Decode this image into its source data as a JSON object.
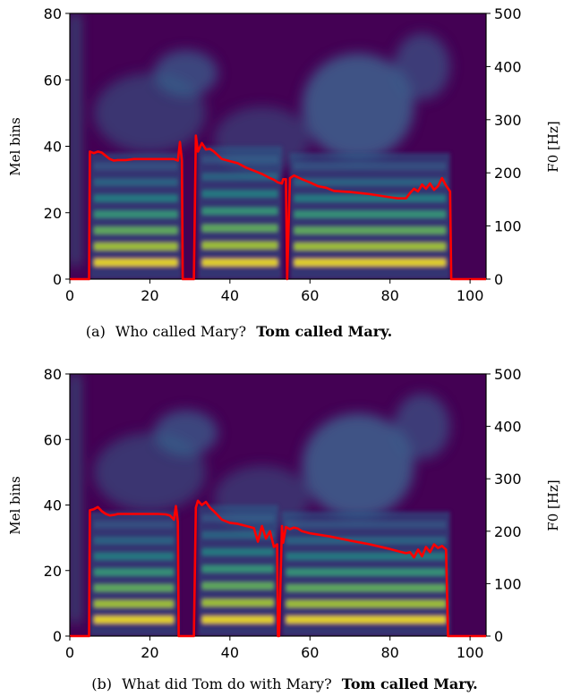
{
  "chart_data": [
    {
      "type": "heatmap",
      "caption": {
        "prefix": "(a)",
        "question": "Who called Mary?",
        "answer": "Tom called Mary."
      },
      "ylabel": "Mel bins",
      "y2label": "F0 [Hz]",
      "xlim": [
        0,
        104
      ],
      "ylim": [
        0,
        80
      ],
      "y2lim": [
        0,
        500
      ],
      "xticks": [
        "0",
        "20",
        "40",
        "60",
        "80",
        "100"
      ],
      "yticks": [
        "0",
        "20",
        "40",
        "60",
        "80"
      ],
      "y2ticks": [
        "0",
        "100",
        "200",
        "300",
        "400",
        "500"
      ],
      "colors": {
        "background": "#440154",
        "f0_line": "#ff0000"
      },
      "voiced_regions": [
        {
          "x0": 5,
          "x1": 28,
          "top": 34
        },
        {
          "x0": 32,
          "x1": 53,
          "top": 36
        },
        {
          "x0": 55,
          "x1": 95,
          "top": 34
        }
      ],
      "series": [
        {
          "type": "line",
          "x": [
            0,
            4.8,
            5,
            6,
            7,
            8,
            9,
            10,
            11,
            12,
            14,
            16,
            18,
            20,
            22,
            24,
            26,
            27,
            27.5,
            28,
            28.2,
            29,
            31,
            31.5,
            32,
            33,
            34,
            35,
            36,
            38,
            40,
            42,
            44,
            46,
            48,
            50,
            51,
            52,
            53,
            53.3,
            54,
            54.3,
            55,
            56,
            58,
            60,
            62,
            64,
            66,
            70,
            75,
            80,
            82,
            84,
            85,
            86,
            87,
            88,
            89,
            90,
            91,
            92,
            93,
            94,
            95,
            95.3,
            104
          ],
          "y": [
            0,
            0,
            240,
            237,
            240,
            238,
            232,
            226,
            223,
            224,
            224,
            226,
            226,
            226,
            226,
            226,
            226,
            223,
            258,
            223,
            0,
            0,
            0,
            270,
            240,
            256,
            244,
            245,
            240,
            226,
            222,
            218,
            210,
            204,
            198,
            190,
            187,
            182,
            180,
            188,
            188,
            0,
            190,
            195,
            188,
            182,
            175,
            172,
            166,
            164,
            160,
            154,
            152,
            152,
            162,
            170,
            165,
            178,
            170,
            180,
            168,
            175,
            190,
            176,
            165,
            0,
            0
          ]
        }
      ]
    },
    {
      "type": "heatmap",
      "caption": {
        "prefix": "(b)",
        "question": "What did Tom do with Mary?",
        "answer": "Tom called Mary."
      },
      "ylabel": "Mel bins",
      "y2label": "F0 [Hz]",
      "xlim": [
        0,
        104
      ],
      "ylim": [
        0,
        80
      ],
      "y2lim": [
        0,
        500
      ],
      "xticks": [
        "0",
        "20",
        "40",
        "60",
        "80",
        "100"
      ],
      "yticks": [
        "0",
        "20",
        "40",
        "60",
        "80"
      ],
      "y2ticks": [
        "0",
        "100",
        "200",
        "300",
        "400",
        "500"
      ],
      "colors": {
        "background": "#440154",
        "f0_line": "#ff0000"
      },
      "voiced_regions": [
        {
          "x0": 5,
          "x1": 27,
          "top": 34
        },
        {
          "x0": 32,
          "x1": 52,
          "top": 36
        },
        {
          "x0": 53,
          "x1": 95,
          "top": 34
        }
      ],
      "series": [
        {
          "type": "line",
          "x": [
            0,
            4.8,
            5,
            6,
            7,
            8,
            9,
            10,
            11,
            12,
            14,
            16,
            18,
            20,
            22,
            24,
            25,
            26,
            26.5,
            27,
            27.2,
            31,
            31.5,
            32,
            33,
            34,
            35,
            36,
            38,
            40,
            42,
            44,
            46,
            47,
            48,
            49,
            50,
            51,
            51.8,
            52,
            52.3,
            53,
            53.3,
            54,
            55,
            56,
            57,
            58,
            60,
            65,
            70,
            75,
            80,
            82,
            84,
            85,
            86,
            87,
            88,
            89,
            90,
            91,
            92,
            93,
            94,
            94.5,
            104
          ],
          "y": [
            0,
            0,
            240,
            242,
            246,
            238,
            233,
            230,
            231,
            233,
            233,
            233,
            233,
            233,
            233,
            232,
            230,
            222,
            248,
            218,
            0,
            0,
            245,
            258,
            250,
            256,
            245,
            238,
            222,
            216,
            214,
            210,
            206,
            180,
            210,
            186,
            200,
            170,
            175,
            0,
            0,
            210,
            178,
            208,
            204,
            207,
            205,
            200,
            196,
            190,
            182,
            175,
            166,
            162,
            158,
            160,
            150,
            165,
            152,
            170,
            160,
            175,
            168,
            172,
            165,
            0,
            0
          ]
        }
      ]
    }
  ]
}
